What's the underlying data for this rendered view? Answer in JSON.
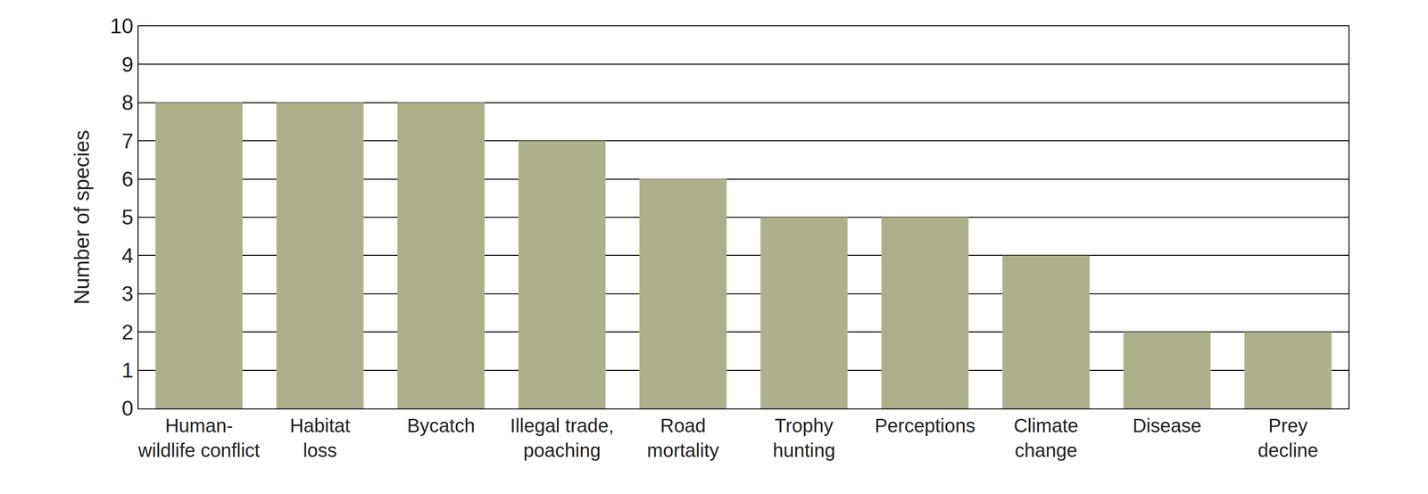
{
  "chart_data": {
    "type": "bar",
    "y_label": "Number of species",
    "categories": [
      "Human-\nwildlife conflict",
      "Habitat\nloss",
      "Bycatch",
      "Illegal trade,\npoaching",
      "Road\nmortality",
      "Trophy\nhunting",
      "Perceptions",
      "Climate\nchange",
      "Disease",
      "Prey\ndecline"
    ],
    "values": [
      8,
      8,
      8,
      7,
      6,
      5,
      5,
      4,
      2,
      2
    ],
    "color": "#adb08a",
    "ylim": [
      0,
      10
    ],
    "yticks": [
      0,
      1,
      2,
      3,
      4,
      5,
      6,
      7,
      8,
      9,
      10
    ],
    "grid": true
  }
}
